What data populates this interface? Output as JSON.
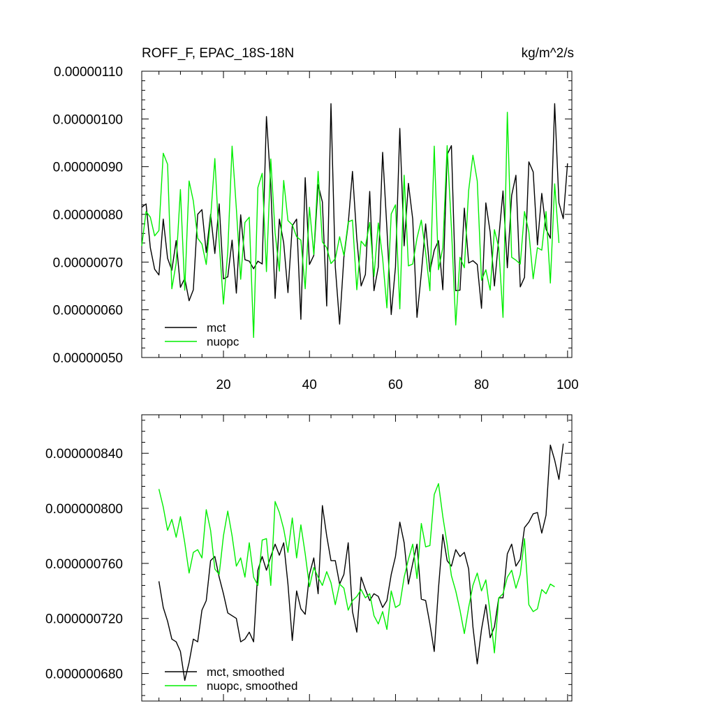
{
  "chart_data": [
    {
      "type": "line",
      "title": "ROFF_F, EPAC_18S-18N",
      "units": "kg/m^2/s",
      "xlabel": "",
      "ylabel": "",
      "xlim": [
        1,
        101
      ],
      "ylim": [
        5e-07,
        1.1e-06
      ],
      "xticks": [
        20,
        40,
        60,
        80,
        100
      ],
      "yticks": [
        5e-07,
        6e-07,
        7e-07,
        8e-07,
        9e-07,
        1e-06,
        1.1e-06
      ],
      "ytick_labels": [
        "0.00000050",
        "0.00000060",
        "0.00000070",
        "0.00000080",
        "0.00000090",
        "0.00000100",
        "0.00000110"
      ],
      "xtick_labels": [
        "20",
        "40",
        "60",
        "80",
        "100"
      ],
      "grid": false,
      "legend_position": "bottom-left",
      "series": [
        {
          "name": "mct",
          "color": "#000000",
          "x_start": 1,
          "values": [
            8.15e-07,
            8.22e-07,
            7.3e-07,
            6.85e-07,
            6.73e-07,
            7.9e-07,
            7.08e-07,
            6.83e-07,
            7.45e-07,
            6.47e-07,
            6.66e-07,
            6.19e-07,
            6.42e-07,
            8e-07,
            8.1e-07,
            7.2e-07,
            8e-07,
            7.18e-07,
            8.22e-07,
            6.65e-07,
            6.69e-07,
            7.46e-07,
            6.35e-07,
            7.99e-07,
            7.05e-07,
            7.02e-07,
            6.86e-07,
            7.02e-07,
            6.96e-07,
            1.005e-06,
            8.6e-07,
            6.24e-07,
            7.9e-07,
            7.4e-07,
            6.36e-07,
            7.76e-07,
            7.9e-07,
            5.8e-07,
            8.77e-07,
            6.95e-07,
            7.14e-07,
            8.62e-07,
            8.26e-07,
            6.08e-07,
            1.032e-06,
            6.9e-07,
            5.7e-07,
            7.1e-07,
            7.8e-07,
            8.9e-07,
            7.49e-07,
            6.5e-07,
            6.74e-07,
            8.48e-07,
            6.4e-07,
            6.9e-07,
            9.3e-07,
            7.71e-07,
            5.9e-07,
            6.9e-07,
            9.8e-07,
            7.34e-07,
            8.65e-07,
            7.9e-07,
            5.84e-07,
            6.76e-07,
            7.8e-07,
            6.8e-07,
            7.25e-07,
            7.45e-07,
            6.42e-07,
            9.25e-07,
            9.44e-07,
            6.4e-07,
            6.41e-07,
            8.13e-07,
            6.98e-07,
            7.03e-07,
            6.95e-07,
            6.03e-07,
            8.24e-07,
            7.63e-07,
            6.5e-07,
            7.5e-07,
            8.49e-07,
            6.88e-07,
            8.4e-07,
            8.82e-07,
            6.48e-07,
            6.68e-07,
            9.1e-07,
            8.89e-07,
            7.36e-07,
            8.44e-07,
            7.69e-07,
            7.5e-07,
            1.032e-06,
            8.24e-07,
            7.91e-07,
            9.07e-07
          ]
        },
        {
          "name": "nuopc",
          "color": "#00ee00",
          "x_start": 1,
          "values": [
            7.34e-07,
            8.06e-07,
            7.94e-07,
            7.55e-07,
            7.66e-07,
            9.28e-07,
            9.05e-07,
            6.44e-07,
            6.98e-07,
            8.52e-07,
            6.41e-07,
            8.7e-07,
            8.28e-07,
            7.5e-07,
            7.38e-07,
            6.95e-07,
            7.91e-07,
            9.17e-07,
            7.42e-07,
            6.12e-07,
            7.22e-07,
            9.43e-07,
            8.12e-07,
            6.64e-07,
            7.83e-07,
            7.94e-07,
            5.42e-07,
            8.56e-07,
            8.86e-07,
            6.8e-07,
            9.16e-07,
            7.61e-07,
            6.81e-07,
            8.71e-07,
            7.87e-07,
            7.78e-07,
            7.53e-07,
            7.46e-07,
            6.44e-07,
            8.15e-07,
            7.16e-07,
            8.9e-07,
            7.42e-07,
            7.3e-07,
            6.97e-07,
            7.07e-07,
            7.53e-07,
            7.14e-07,
            7.84e-07,
            7.88e-07,
            6.42e-07,
            7.44e-07,
            7.33e-07,
            7.83e-07,
            6.7e-07,
            7.82e-07,
            7.08e-07,
            6.04e-07,
            8.01e-07,
            8.2e-07,
            6.02e-07,
            8.82e-07,
            6.92e-07,
            6.96e-07,
            7.5e-07,
            7.88e-07,
            7.2e-07,
            6.4e-07,
            9.43e-07,
            6.84e-07,
            7.3e-07,
            9.44e-07,
            7.72e-07,
            5.68e-07,
            7.1e-07,
            6.88e-07,
            8.5e-07,
            9.24e-07,
            8.7e-07,
            6.62e-07,
            6.84e-07,
            6.41e-07,
            7.68e-07,
            7.3e-07,
            5.84e-07,
            1.014e-06,
            7.1e-07,
            7.04e-07,
            6.96e-07,
            8.06e-07,
            7.63e-07,
            6.65e-07,
            7.3e-07,
            7.25e-07,
            8.06e-07,
            6.56e-07,
            8.64e-07,
            7.4e-07
          ]
        }
      ]
    },
    {
      "type": "line",
      "title": "",
      "xlabel": "",
      "ylabel": "",
      "xlim": [
        1,
        101
      ],
      "ylim": [
        6.6e-07,
        8.68e-07
      ],
      "xticks": [
        20,
        40,
        60,
        80,
        100
      ],
      "yticks": [
        6.8e-07,
        7.2e-07,
        7.6e-07,
        8e-07,
        8.4e-07
      ],
      "ytick_labels": [
        "0.000000680",
        "0.000000720",
        "0.000000760",
        "0.000000800",
        "0.000000840"
      ],
      "xtick_labels": [],
      "grid": false,
      "legend_position": "bottom-left",
      "series": [
        {
          "name": "mct, smoothed",
          "color": "#000000",
          "x_start": 5,
          "values": [
            7.47e-07,
            7.28e-07,
            7.18e-07,
            7.05e-07,
            7.03e-07,
            6.96e-07,
            6.75e-07,
            6.88e-07,
            7.05e-07,
            7.03e-07,
            7.26e-07,
            7.33e-07,
            7.62e-07,
            7.65e-07,
            7.5e-07,
            7.38e-07,
            7.24e-07,
            7.22e-07,
            7.2e-07,
            7.03e-07,
            7.05e-07,
            7.1e-07,
            7.03e-07,
            7.55e-07,
            7.65e-07,
            7.55e-07,
            7.65e-07,
            7.74e-07,
            7.66e-07,
            7.75e-07,
            7.45e-07,
            7.04e-07,
            7.4e-07,
            7.27e-07,
            7.23e-07,
            7.52e-07,
            7.64e-07,
            7.38e-07,
            8.02e-07,
            7.8e-07,
            7.62e-07,
            7.62e-07,
            7.45e-07,
            7.52e-07,
            7.75e-07,
            7.25e-07,
            7.1e-07,
            7.5e-07,
            7.41e-07,
            7.33e-07,
            7.38e-07,
            7.36e-07,
            7.28e-07,
            7.33e-07,
            7.52e-07,
            7.65e-07,
            7.9e-07,
            7.75e-07,
            7.45e-07,
            7.6e-07,
            7.74e-07,
            7.34e-07,
            7.33e-07,
            7.16e-07,
            6.96e-07,
            7.42e-07,
            7.81e-07,
            7.62e-07,
            7.58e-07,
            7.7e-07,
            7.65e-07,
            7.68e-07,
            7.56e-07,
            7.14e-07,
            6.87e-07,
            7.12e-07,
            7.3e-07,
            7.06e-07,
            7.14e-07,
            7.35e-07,
            7.35e-07,
            7.67e-07,
            7.74e-07,
            7.58e-07,
            7.63e-07,
            7.86e-07,
            7.9e-07,
            7.96e-07,
            7.97e-07,
            7.82e-07,
            7.95e-07,
            8.46e-07,
            8.35e-07,
            8.21e-07,
            8.47e-07
          ]
        },
        {
          "name": "nuopc, smoothed",
          "color": "#00ee00",
          "x_start": 5,
          "values": [
            8.14e-07,
            8.01e-07,
            7.84e-07,
            7.92e-07,
            7.79e-07,
            7.94e-07,
            7.75e-07,
            7.53e-07,
            7.68e-07,
            7.7e-07,
            7.64e-07,
            7.99e-07,
            7.84e-07,
            7.56e-07,
            7.52e-07,
            7.8e-07,
            7.98e-07,
            7.8e-07,
            7.58e-07,
            7.64e-07,
            7.5e-07,
            7.75e-07,
            7.5e-07,
            7.44e-07,
            7.77e-07,
            7.78e-07,
            7.44e-07,
            8.05e-07,
            7.97e-07,
            7.85e-07,
            7.68e-07,
            7.93e-07,
            7.64e-07,
            7.88e-07,
            7.67e-07,
            7.43e-07,
            7.57e-07,
            7.5e-07,
            7.44e-07,
            7.54e-07,
            7.46e-07,
            7.3e-07,
            7.45e-07,
            7.42e-07,
            7.26e-07,
            7.33e-07,
            7.36e-07,
            7.41e-07,
            7.35e-07,
            7.38e-07,
            7.22e-07,
            7.16e-07,
            7.25e-07,
            7.12e-07,
            7.4e-07,
            7.28e-07,
            7.3e-07,
            7.5e-07,
            7.63e-07,
            7.74e-07,
            7.49e-07,
            7.89e-07,
            7.72e-07,
            7.73e-07,
            8.1e-07,
            8.18e-07,
            7.94e-07,
            7.74e-07,
            7.51e-07,
            7.4e-07,
            7.26e-07,
            7.09e-07,
            7.28e-07,
            7.44e-07,
            7.53e-07,
            7.4e-07,
            7.48e-07,
            7.24e-07,
            6.95e-07,
            7.35e-07,
            7.38e-07,
            7.5e-07,
            7.55e-07,
            7.42e-07,
            7.52e-07,
            7.78e-07,
            7.3e-07,
            7.25e-07,
            7.27e-07,
            7.41e-07,
            7.38e-07,
            7.45e-07,
            7.43e-07
          ]
        }
      ]
    }
  ]
}
